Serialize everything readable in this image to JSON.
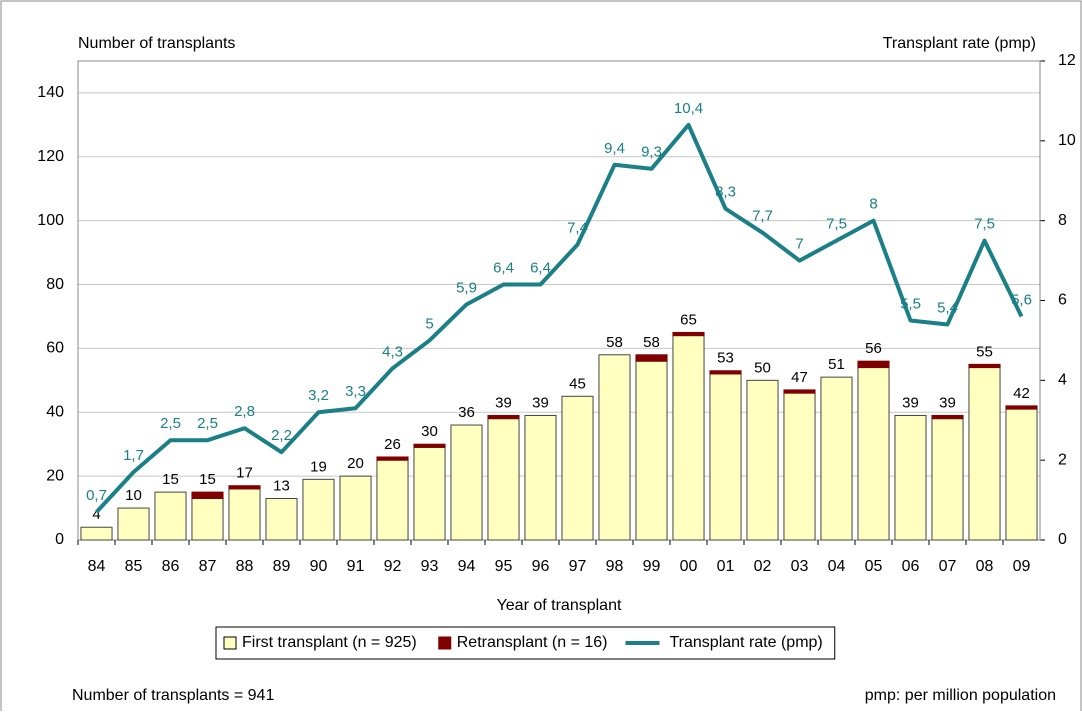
{
  "chart_data": {
    "type": "bar-line",
    "y_title": "Number of transplants",
    "y2_title": "Transplant rate (pmp)",
    "x_title": "Year of transplant",
    "footnote_left": "Number of transplants = 941",
    "footnote_right": "pmp: per million population",
    "categories": [
      "84",
      "85",
      "86",
      "87",
      "88",
      "89",
      "90",
      "91",
      "92",
      "93",
      "94",
      "95",
      "96",
      "97",
      "98",
      "99",
      "00",
      "01",
      "02",
      "03",
      "04",
      "05",
      "06",
      "07",
      "08",
      "09"
    ],
    "series": [
      {
        "name": "First transplant (n = 925)",
        "type": "bar",
        "color": "#ffffc0",
        "values": [
          4,
          10,
          15,
          13,
          16,
          13,
          19,
          20,
          25,
          29,
          36,
          38,
          39,
          45,
          58,
          56,
          64,
          52,
          50,
          46,
          51,
          54,
          39,
          38,
          54,
          41
        ]
      },
      {
        "name": "Retransplant (n = 16)",
        "type": "bar",
        "color": "#800000",
        "values": [
          0,
          0,
          0,
          2,
          1,
          0,
          0,
          0,
          1,
          1,
          0,
          1,
          0,
          0,
          0,
          2,
          1,
          1,
          0,
          1,
          0,
          2,
          0,
          1,
          1,
          1
        ]
      },
      {
        "name": "Transplant rate (pmp)",
        "type": "line",
        "axis": "y2",
        "color": "#1a7f86",
        "values": [
          0.7,
          1.7,
          2.5,
          2.5,
          2.8,
          2.2,
          3.2,
          3.3,
          4.3,
          5,
          5.9,
          6.4,
          6.4,
          7.4,
          9.4,
          9.3,
          10.4,
          8.3,
          7.7,
          7,
          7.5,
          8,
          5.5,
          5.4,
          7.5,
          5.6
        ],
        "value_labels": [
          "0,7",
          "1,7",
          "2,5",
          "2,5",
          "2,8",
          "2,2",
          "3,2",
          "3,3",
          "4,3",
          "5",
          "5,9",
          "6,4",
          "6,4",
          "7,4",
          "9,4",
          "9,3",
          "10,4",
          "8,3",
          "7,7",
          "7",
          "7,5",
          "8",
          "5,5",
          "5,4",
          "7,5",
          "5,6"
        ]
      }
    ],
    "totals": [
      4,
      10,
      15,
      15,
      17,
      13,
      19,
      20,
      26,
      30,
      36,
      39,
      39,
      45,
      58,
      58,
      65,
      53,
      50,
      47,
      51,
      56,
      39,
      39,
      55,
      42
    ],
    "ylim": [
      0,
      150
    ],
    "yticks": [
      0,
      20,
      40,
      60,
      80,
      100,
      120,
      140
    ],
    "y2lim": [
      0,
      12
    ],
    "y2ticks": [
      0,
      2,
      4,
      6,
      8,
      10,
      12
    ],
    "grid": true,
    "legend": "bottom"
  }
}
